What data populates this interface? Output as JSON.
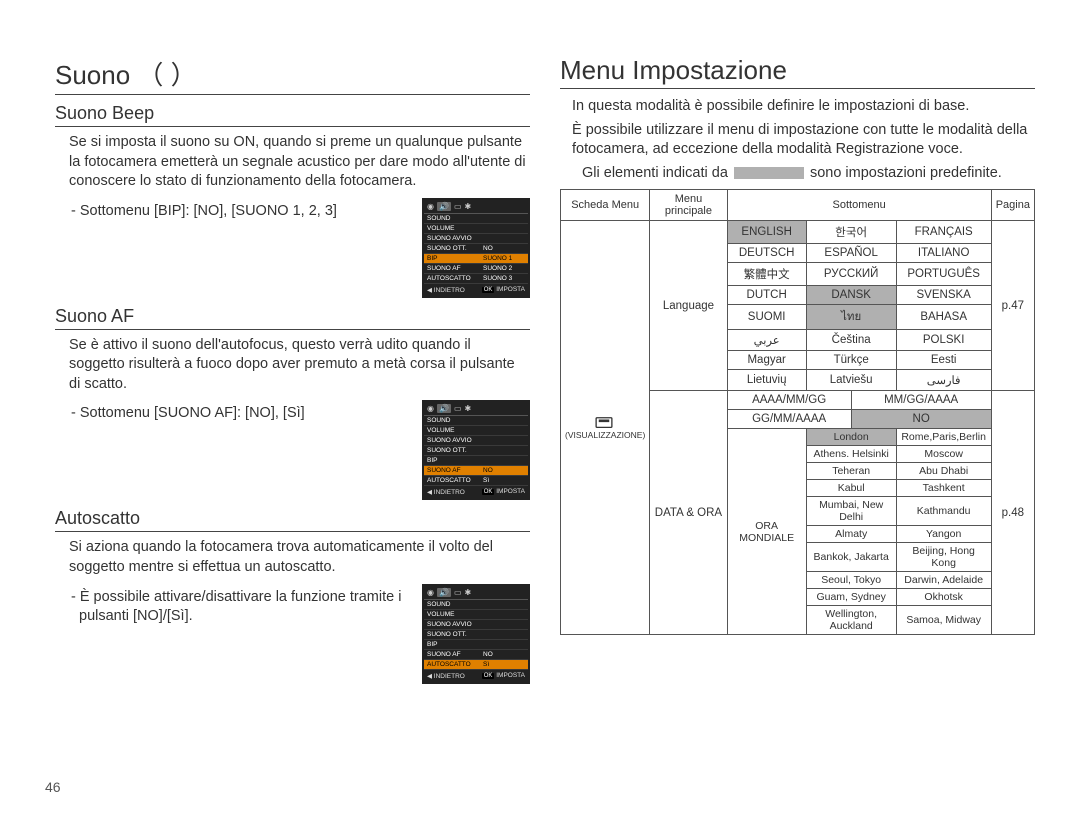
{
  "pageNumber": "46",
  "left": {
    "title": "Suono （     ）",
    "sections": [
      {
        "heading": "Suono Beep",
        "body": "Se si imposta il suono su ON, quando si preme un qualunque pulsante la fotocamera emetterà un segnale acustico per dare modo all'utente di conoscere lo stato di funzionamento della fotocamera.",
        "bullet": "- Sottomenu [BIP]: [NO], [SUONO 1, 2, 3]",
        "lcd": {
          "items": [
            "SOUND",
            "VOLUME",
            "SUONO AVVIO",
            "SUONO OTT.",
            "BIP",
            "SUONO AF",
            "AUTOSCATTO"
          ],
          "right": [
            "",
            "",
            "",
            "NO",
            "SUONO 1",
            "SUONO 2",
            "SUONO 3"
          ],
          "hlIndex": 4,
          "back": "INDIETRO",
          "ok": "OK",
          "set": "IMPOSTA"
        }
      },
      {
        "heading": "Suono AF",
        "body": "Se è attivo il suono dell'autofocus, questo verrà udito quando il soggetto risulterà a fuoco dopo aver premuto a metà corsa il pulsante di scatto.",
        "bullet": "- Sottomenu [SUONO AF]: [NO], [Sì]",
        "lcd": {
          "items": [
            "SOUND",
            "VOLUME",
            "SUONO AVVIO",
            "SUONO OTT.",
            "BIP",
            "SUONO AF",
            "AUTOSCATTO"
          ],
          "right": [
            "",
            "",
            "",
            "",
            "",
            "NO",
            "Sì"
          ],
          "hlIndex": 5,
          "back": "INDIETRO",
          "ok": "OK",
          "set": "IMPOSTA"
        }
      },
      {
        "heading": "Autoscatto",
        "body": "Si aziona quando la fotocamera trova automaticamente il volto del soggetto mentre si effettua un autoscatto.",
        "bullet": "- È possibile attivare/disattivare la funzione tramite i pulsanti [NO]/[Sì].",
        "lcd": {
          "items": [
            "SOUND",
            "VOLUME",
            "SUONO AVVIO",
            "SUONO OTT.",
            "BIP",
            "SUONO AF",
            "AUTOSCATTO"
          ],
          "right": [
            "",
            "",
            "",
            "",
            "",
            "NO",
            "Sì"
          ],
          "hlIndex": 6,
          "back": "INDIETRO",
          "ok": "OK",
          "set": "IMPOSTA"
        }
      }
    ]
  },
  "right": {
    "title": "Menu Impostazione",
    "intro1": "In questa modalità è possibile definire le impostazioni di base.",
    "intro2": "È possibile utilizzare il menu di impostazione con tutte le modalità della fotocamera, ad eccezione della modalità Registrazione voce.",
    "intro3a": "Gli elementi indicati da",
    "intro3b": "sono impostazioni predefinite.",
    "table": {
      "headers": [
        "Scheda Menu",
        "Menu principale",
        "Sottomenu",
        "Pagina"
      ],
      "tabLabel": "(VISUALIZZAZIONE)",
      "languageLabel": "Language",
      "languagePage": "p.47",
      "langs": [
        [
          "ENGLISH",
          "한국어",
          "FRANÇAIS"
        ],
        [
          "DEUTSCH",
          "ESPAÑOL",
          "ITALIANO"
        ],
        [
          "繁體中文",
          "РУССКИЙ",
          "PORTUGUÊS"
        ],
        [
          "DUTCH",
          "DANSK",
          "SVENSKA"
        ],
        [
          "SUOMI",
          "ไทย",
          "BAHASA"
        ],
        [
          "عربي",
          "Čeština",
          "POLSKI"
        ],
        [
          "Magyar",
          "Türkçe",
          "Eesti"
        ],
        [
          "Lietuvių",
          "Latviešu",
          "فارسی"
        ]
      ],
      "langShaded": [
        [
          0,
          0
        ],
        [
          3,
          1
        ],
        [
          4,
          1
        ]
      ],
      "dataOraLabel": "DATA & ORA",
      "dataOraPage": "p.48",
      "dates": [
        [
          "AAAA/MM/GG",
          "MM/GG/AAAA"
        ],
        [
          "GG/MM/AAAA",
          "NO"
        ]
      ],
      "datesShaded": [
        [
          1,
          1
        ]
      ],
      "worldLabel": "ORA MONDIALE",
      "world": [
        [
          "London",
          "Rome,Paris,Berlin"
        ],
        [
          "Athens. Helsinki",
          "Moscow"
        ],
        [
          "Teheran",
          "Abu Dhabi"
        ],
        [
          "Kabul",
          "Tashkent"
        ],
        [
          "Mumbai, New Delhi",
          "Kathmandu"
        ],
        [
          "Almaty",
          "Yangon"
        ],
        [
          "Bankok, Jakarta",
          "Beijing, Hong Kong"
        ],
        [
          "Seoul, Tokyo",
          "Darwin, Adelaide"
        ],
        [
          "Guam, Sydney",
          "Okhotsk"
        ],
        [
          "Wellington, Auckland",
          "Samoa, Midway"
        ]
      ],
      "worldShaded": [
        [
          0,
          0
        ]
      ]
    }
  }
}
